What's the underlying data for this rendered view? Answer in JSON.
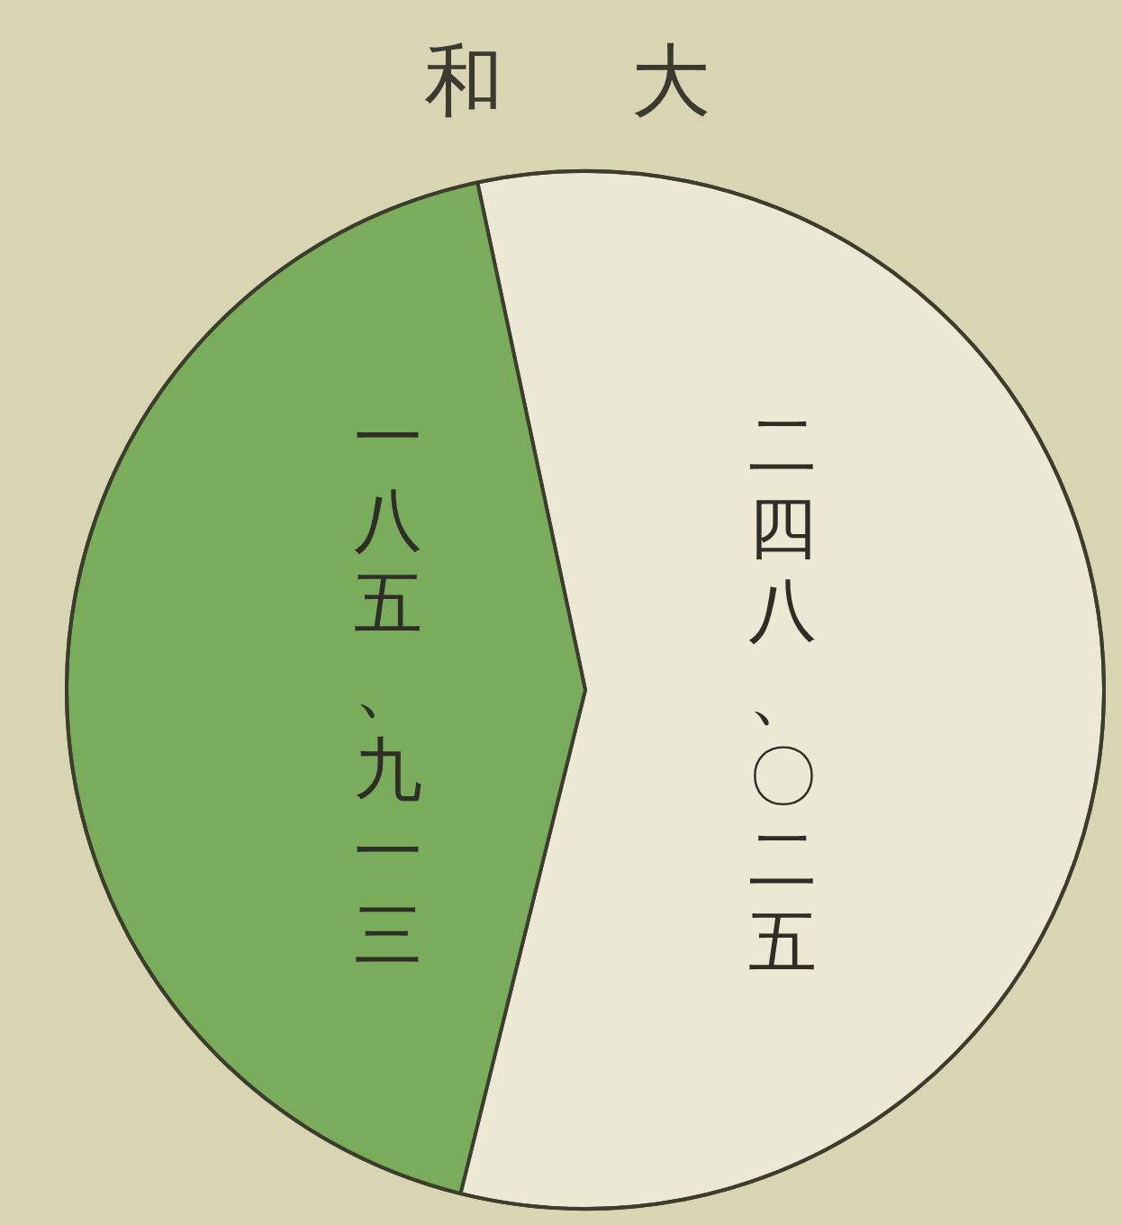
{
  "chart_data": {
    "type": "pie",
    "title": "和大",
    "categories": [
      null,
      null
    ],
    "values": [
      57.2,
      42.8
    ],
    "value_labels": [
      "二四八、〇二五",
      "一八五、九一三"
    ],
    "colors": [
      "#ebe9d3",
      "#79ad5c"
    ]
  }
}
